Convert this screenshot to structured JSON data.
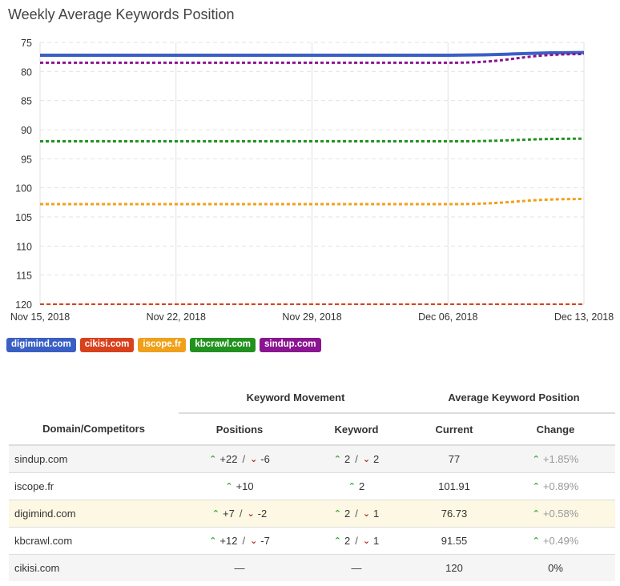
{
  "title": "Weekly Average Keywords Position",
  "chart_data": {
    "type": "line",
    "title": "Weekly Average Keywords Position",
    "xlabel": "",
    "ylabel": "",
    "x": [
      "Nov 15, 2018",
      "Nov 22, 2018",
      "Nov 29, 2018",
      "Dec 06, 2018",
      "Dec 13, 2018"
    ],
    "ylim": [
      75,
      120
    ],
    "y_inverted": true,
    "yticks": [
      75,
      80,
      85,
      90,
      95,
      100,
      105,
      110,
      115,
      120
    ],
    "grid": true,
    "legend_position": "bottom-left",
    "series": [
      {
        "name": "digimind.com",
        "color": "#3a5fc4",
        "style": "solid",
        "values": [
          77.2,
          77.2,
          77.2,
          77.2,
          76.73
        ]
      },
      {
        "name": "cikisi.com",
        "color": "#d9401c",
        "style": "dashed",
        "values": [
          120,
          120,
          120,
          120,
          120
        ]
      },
      {
        "name": "iscope.fr",
        "color": "#f0a01a",
        "style": "dashed",
        "values": [
          102.8,
          102.8,
          102.8,
          102.8,
          101.91
        ]
      },
      {
        "name": "kbcrawl.com",
        "color": "#21921f",
        "style": "dashed",
        "values": [
          92.0,
          92.0,
          92.0,
          92.0,
          91.55
        ]
      },
      {
        "name": "sindup.com",
        "color": "#8b1591",
        "style": "dashed",
        "values": [
          78.5,
          78.5,
          78.5,
          78.5,
          77
        ]
      }
    ]
  },
  "table": {
    "group_headers": [
      "Keyword Movement",
      "Average Keyword Position"
    ],
    "columns": [
      "Domain/Competitors",
      "Positions",
      "Keyword",
      "Current",
      "Change"
    ],
    "rows": [
      {
        "domain": "sindup.com",
        "pos_up": "+22",
        "pos_down": "-6",
        "kw_up": "2",
        "kw_down": "2",
        "current": "77",
        "change": "+1.85%"
      },
      {
        "domain": "iscope.fr",
        "pos_up": "+10",
        "pos_down": "",
        "kw_up": "2",
        "kw_down": "",
        "current": "101.91",
        "change": "+0.89%"
      },
      {
        "domain": "digimind.com",
        "pos_up": "+7",
        "pos_down": "-2",
        "kw_up": "2",
        "kw_down": "1",
        "current": "76.73",
        "change": "+0.58%",
        "highlight": true
      },
      {
        "domain": "kbcrawl.com",
        "pos_up": "+12",
        "pos_down": "-7",
        "kw_up": "2",
        "kw_down": "1",
        "current": "91.55",
        "change": "+0.49%"
      },
      {
        "domain": "cikisi.com",
        "pos_text": "—",
        "kw_text": "—",
        "current": "120",
        "change_text": "0%"
      }
    ]
  }
}
